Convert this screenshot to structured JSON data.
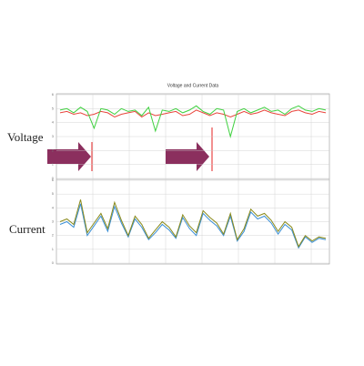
{
  "chart_data": [
    {
      "type": "line",
      "title": "Voltage and Current Data",
      "annotation": "Voltage",
      "ylim": [
        0,
        6
      ],
      "yticks": [
        0,
        1,
        2,
        3,
        4,
        5,
        6
      ],
      "grid": true,
      "series": [
        {
          "color": "#e8453c",
          "values": [
            4.7,
            4.8,
            4.6,
            4.7,
            4.5,
            4.6,
            4.8,
            4.7,
            4.4,
            4.6,
            4.7,
            4.8,
            4.4,
            4.7,
            4.5,
            4.6,
            4.7,
            4.8,
            4.5,
            4.6,
            4.9,
            4.7,
            4.5,
            4.7,
            4.6,
            4.4,
            4.6,
            4.8,
            4.6,
            4.7,
            4.9,
            4.7,
            4.6,
            4.5,
            4.8,
            4.9,
            4.7,
            4.6,
            4.8,
            4.7
          ]
        },
        {
          "color": "#3fd13f",
          "values": [
            4.9,
            5.0,
            4.7,
            5.1,
            4.8,
            3.6,
            5.0,
            4.9,
            4.6,
            5.0,
            4.8,
            4.9,
            4.5,
            5.1,
            3.4,
            4.9,
            4.8,
            5.0,
            4.7,
            4.9,
            5.2,
            4.8,
            4.6,
            5.0,
            4.9,
            3.0,
            4.8,
            5.0,
            4.7,
            4.9,
            5.1,
            4.8,
            4.9,
            4.6,
            5.0,
            5.2,
            4.9,
            4.8,
            5.0,
            4.9
          ]
        }
      ]
    },
    {
      "type": "line",
      "annotation": "Current",
      "ylim": [
        0,
        6
      ],
      "yticks": [
        0,
        1,
        2,
        3,
        4,
        5,
        6
      ],
      "grid": true,
      "series": [
        {
          "color": "#3a8fd6",
          "values": [
            2.8,
            3.0,
            2.6,
            4.3,
            2.0,
            2.7,
            3.4,
            2.3,
            4.1,
            2.9,
            1.9,
            3.2,
            2.6,
            1.7,
            2.2,
            2.8,
            2.4,
            1.8,
            3.3,
            2.5,
            2.0,
            3.6,
            3.1,
            2.7,
            2.0,
            3.4,
            1.6,
            2.3,
            3.7,
            3.2,
            3.4,
            2.9,
            2.1,
            2.8,
            2.4,
            1.1,
            1.9,
            1.5,
            1.8,
            1.7
          ]
        },
        {
          "color": "#8a8a1a",
          "values": [
            3.0,
            3.2,
            2.8,
            4.6,
            2.2,
            2.9,
            3.6,
            2.5,
            4.4,
            3.1,
            2.0,
            3.4,
            2.8,
            1.8,
            2.4,
            3.0,
            2.6,
            1.9,
            3.5,
            2.7,
            2.2,
            3.8,
            3.3,
            2.9,
            2.1,
            3.6,
            1.7,
            2.5,
            3.9,
            3.4,
            3.6,
            3.1,
            2.3,
            3.0,
            2.6,
            1.2,
            2.0,
            1.6,
            1.9,
            1.8
          ]
        }
      ]
    }
  ]
}
